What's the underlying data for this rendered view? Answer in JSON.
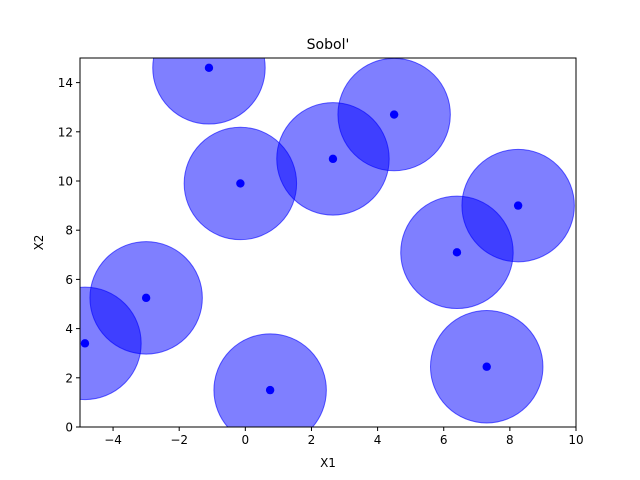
{
  "chart_data": {
    "type": "scatter",
    "title": "Sobol'",
    "xlabel": "X1",
    "ylabel": "X2",
    "xlim": [
      -5,
      10
    ],
    "ylim": [
      0,
      15
    ],
    "xticks": [
      -4,
      -2,
      0,
      2,
      4,
      6,
      8,
      10
    ],
    "yticks": [
      0,
      2,
      4,
      6,
      8,
      10,
      12,
      14
    ],
    "grid": false,
    "marker_color": "#0000ff",
    "circle_fill": "#0000ff",
    "circle_alpha": 0.5,
    "circle_radius_x_units": 1.7,
    "points": [
      {
        "x": -1.1,
        "y": 14.6
      },
      {
        "x": 4.5,
        "y": 12.7
      },
      {
        "x": 2.65,
        "y": 10.9
      },
      {
        "x": -0.15,
        "y": 9.9
      },
      {
        "x": 8.25,
        "y": 9.0
      },
      {
        "x": 6.4,
        "y": 7.1
      },
      {
        "x": -3.0,
        "y": 5.25
      },
      {
        "x": -4.85,
        "y": 3.4
      },
      {
        "x": 0.75,
        "y": 1.5
      },
      {
        "x": 7.3,
        "y": 2.45
      }
    ]
  }
}
